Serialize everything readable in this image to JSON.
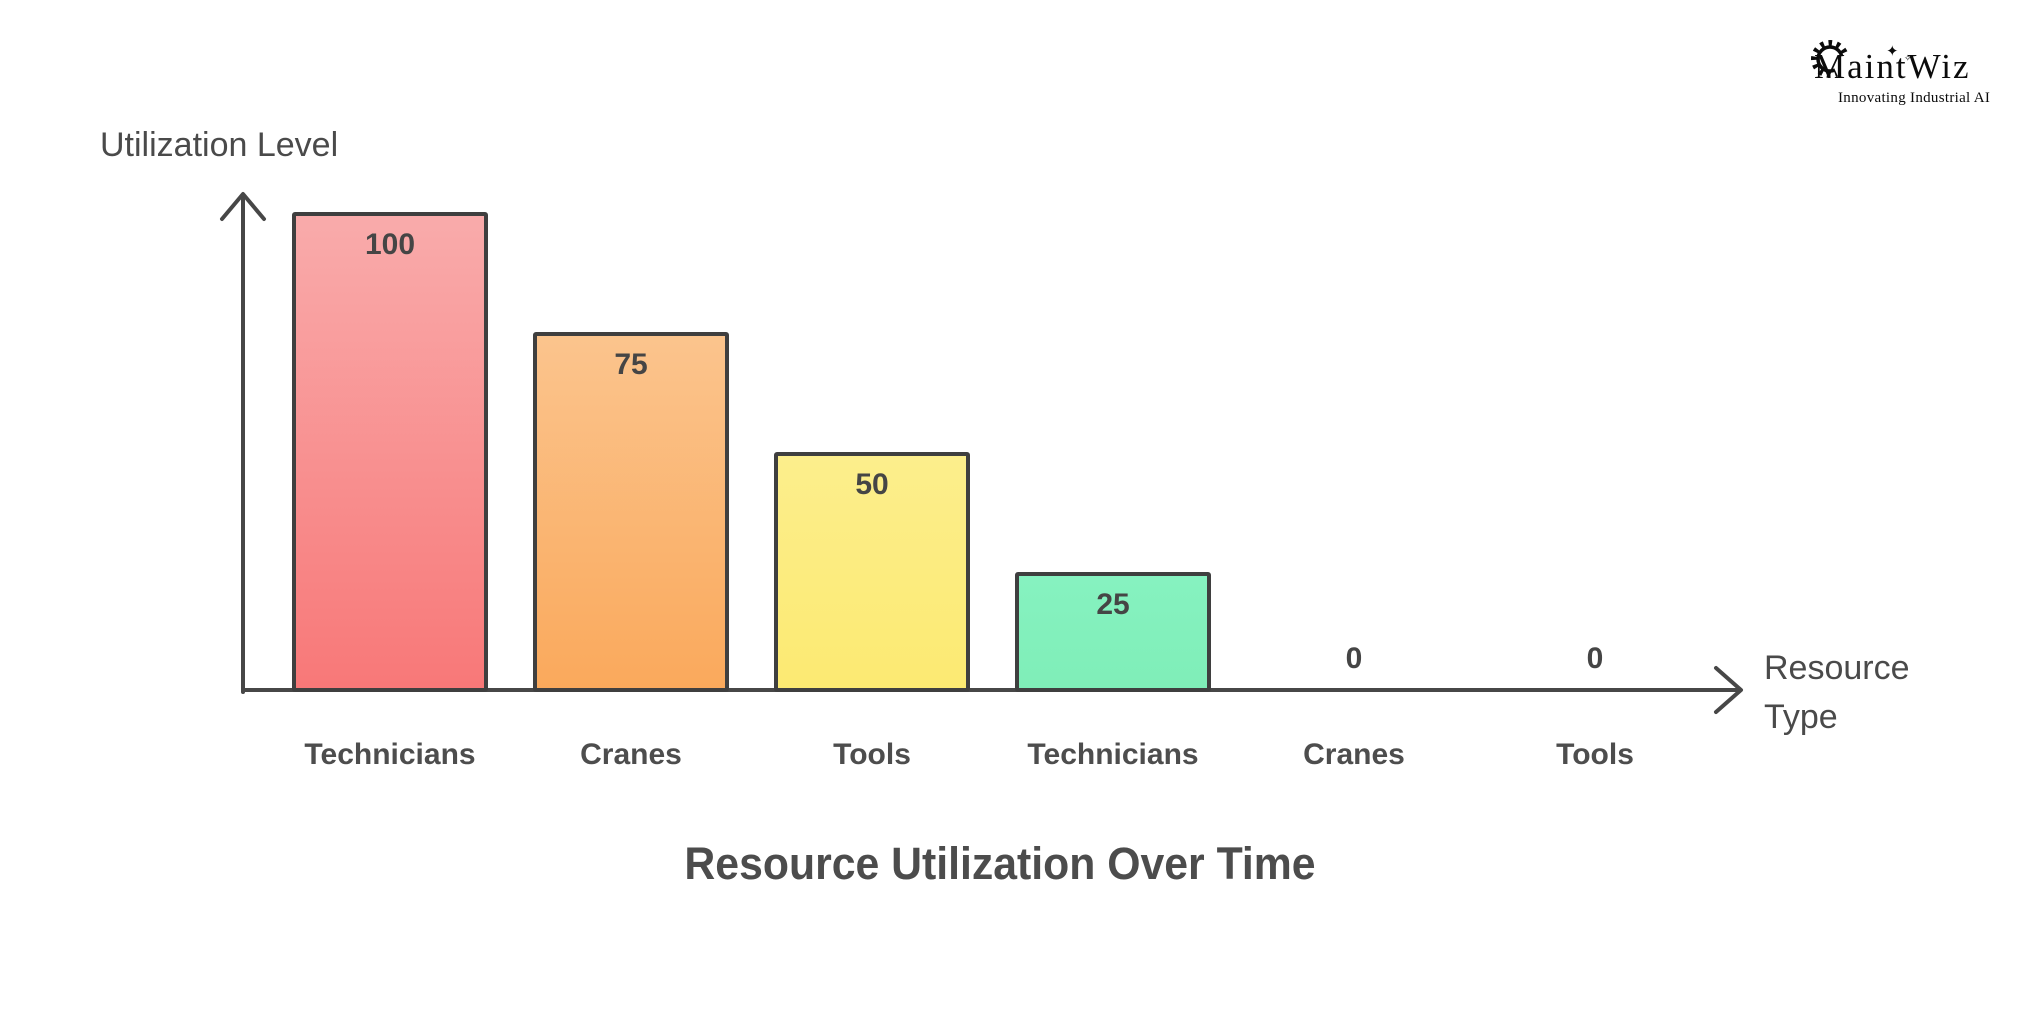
{
  "logo": {
    "name": "MaintWiz",
    "tagline": "Innovating Industrial AI",
    "color": "#0b0b0b"
  },
  "chart_data": {
    "type": "bar",
    "title": "Resource Utilization Over Time",
    "xlabel": "Resource Type",
    "ylabel": "Utilization Level",
    "categories": [
      "Technicians",
      "Cranes",
      "Tools",
      "Technicians",
      "Cranes",
      "Tools"
    ],
    "values": [
      100,
      75,
      50,
      25,
      0,
      0
    ],
    "ylim": [
      0,
      100
    ],
    "grid": false,
    "legend": null,
    "value_labels_shown": true,
    "bar_colors": [
      {
        "top": "#F9ABAB",
        "bottom": "#F87878"
      },
      {
        "top": "#FBC48D",
        "bottom": "#FAA95C"
      },
      {
        "top": "#FCEE8C",
        "bottom": "#FCEA72"
      },
      {
        "top": "#86F2C0",
        "bottom": "#7FEEB8"
      },
      null,
      null
    ],
    "bar_border_color": "#3F3F3F",
    "axis_color": "#474747",
    "text_color": "#4A4A4A"
  }
}
